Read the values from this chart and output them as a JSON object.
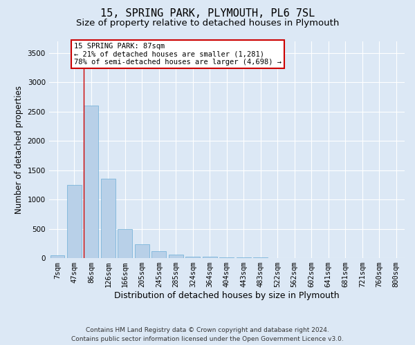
{
  "title": "15, SPRING PARK, PLYMOUTH, PL6 7SL",
  "subtitle": "Size of property relative to detached houses in Plymouth",
  "xlabel": "Distribution of detached houses by size in Plymouth",
  "ylabel": "Number of detached properties",
  "categories": [
    "7sqm",
    "47sqm",
    "86sqm",
    "126sqm",
    "166sqm",
    "205sqm",
    "245sqm",
    "285sqm",
    "324sqm",
    "364sqm",
    "404sqm",
    "443sqm",
    "483sqm",
    "522sqm",
    "562sqm",
    "602sqm",
    "641sqm",
    "681sqm",
    "721sqm",
    "760sqm",
    "800sqm"
  ],
  "values": [
    50,
    1250,
    2600,
    1350,
    500,
    240,
    120,
    55,
    30,
    20,
    15,
    12,
    10,
    5,
    3,
    2,
    2,
    1,
    1,
    1,
    1
  ],
  "bar_color": "#b8d0e8",
  "bar_edge_color": "#6baed6",
  "highlight_index": 2,
  "highlight_line_color": "#cc0000",
  "annotation_text": "15 SPRING PARK: 87sqm\n← 21% of detached houses are smaller (1,281)\n78% of semi-detached houses are larger (4,698) →",
  "annotation_box_color": "#ffffff",
  "annotation_box_edge_color": "#cc0000",
  "ylim": [
    0,
    3700
  ],
  "yticks": [
    0,
    500,
    1000,
    1500,
    2000,
    2500,
    3000,
    3500
  ],
  "footer_line1": "Contains HM Land Registry data © Crown copyright and database right 2024.",
  "footer_line2": "Contains public sector information licensed under the Open Government Licence v3.0.",
  "bg_color": "#dce8f5",
  "grid_color": "#ffffff",
  "title_fontsize": 11,
  "subtitle_fontsize": 9.5,
  "ylabel_fontsize": 8.5,
  "xlabel_fontsize": 9,
  "tick_fontsize": 7.5,
  "ann_fontsize": 7.5,
  "footer_fontsize": 6.5
}
